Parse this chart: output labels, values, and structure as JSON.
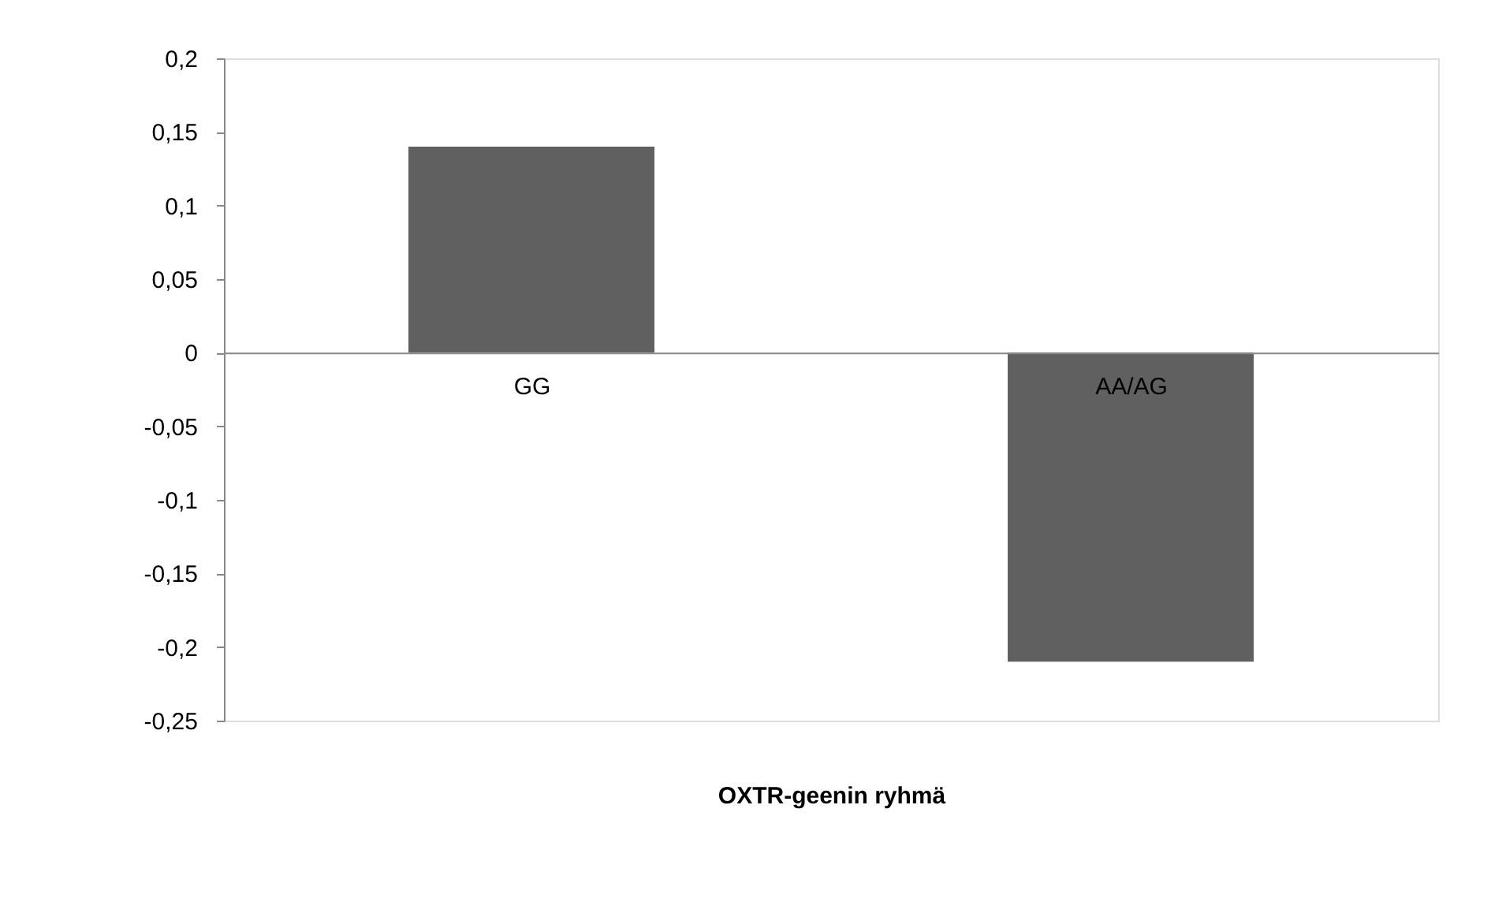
{
  "chart_data": {
    "type": "bar",
    "xlabel": "OXTR-geenin ryhmä",
    "categories": [
      "GG",
      "AA/AG"
    ],
    "values": [
      0.14,
      -0.21
    ],
    "color": "#606060",
    "ylim": [
      -0.25,
      0.2
    ],
    "yticks": [
      {
        "value": -0.25,
        "label": "-0,25"
      },
      {
        "value": -0.2,
        "label": "-0,2"
      },
      {
        "value": -0.15,
        "label": "-0,15"
      },
      {
        "value": -0.1,
        "label": "-0,1"
      },
      {
        "value": -0.05,
        "label": "-0,05"
      },
      {
        "value": 0,
        "label": "0"
      },
      {
        "value": 0.05,
        "label": "0,05"
      },
      {
        "value": 0.1,
        "label": "0,1"
      },
      {
        "value": 0.15,
        "label": "0,15"
      },
      {
        "value": 0.2,
        "label": "0,2"
      }
    ],
    "grid": false
  }
}
